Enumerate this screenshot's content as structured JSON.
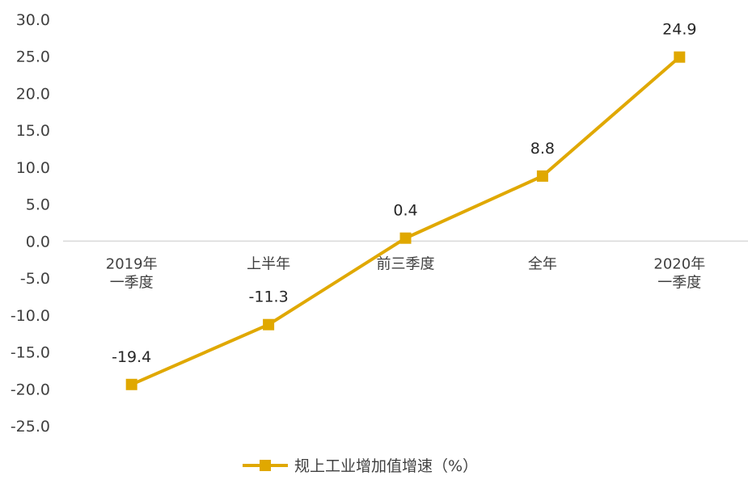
{
  "chart_data": {
    "type": "line",
    "categories": [
      [
        "2019年",
        "一季度"
      ],
      [
        "上半年"
      ],
      [
        "前三季度"
      ],
      [
        "全年"
      ],
      [
        "2020年",
        "一季度"
      ]
    ],
    "series": [
      {
        "name": "规上工业增加值增速（%）",
        "values": [
          -19.4,
          -11.3,
          0.4,
          8.8,
          24.9
        ],
        "labels": [
          "-19.4",
          "-11.3",
          "0.4",
          "8.8",
          "24.9"
        ],
        "color": "#E0A800"
      }
    ],
    "yticks": [
      "30.0",
      "25.0",
      "20.0",
      "15.0",
      "10.0",
      "5.0",
      "0.0",
      "-5.0",
      "-10.0",
      "-15.0",
      "-20.0",
      "-25.0"
    ],
    "ylim": [
      -25,
      30
    ],
    "grid": false,
    "legend_position": "bottom",
    "axis_color": "#d9d9d9"
  }
}
